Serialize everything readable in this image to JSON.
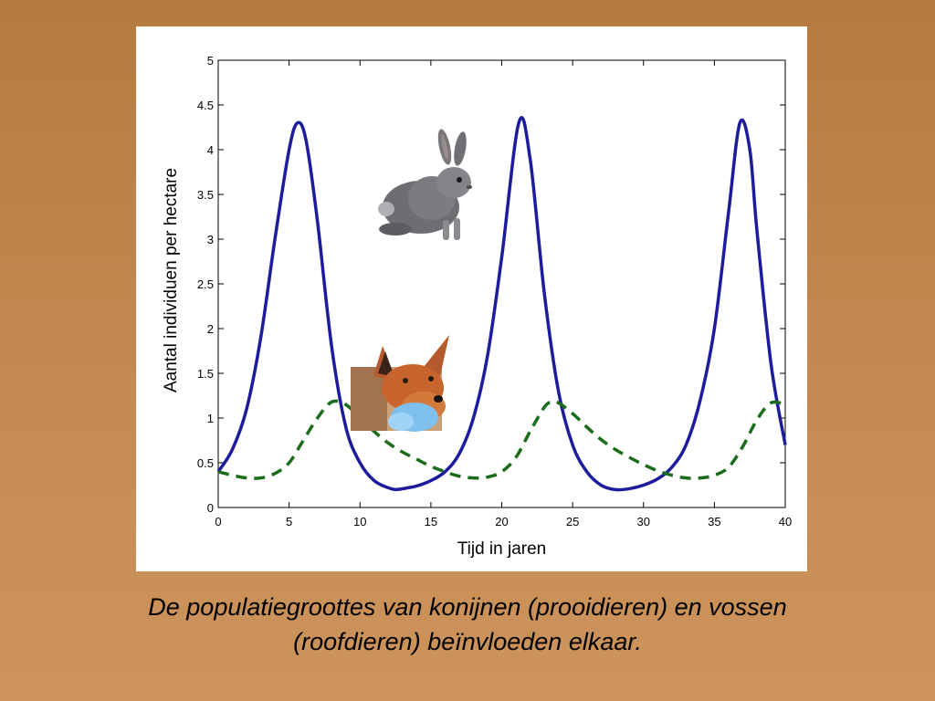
{
  "chart_data": {
    "type": "line",
    "title": "",
    "xlabel": "Tijd in jaren",
    "ylabel": "Aantal individuen per hectare",
    "xlim": [
      0,
      40
    ],
    "ylim": [
      0,
      5
    ],
    "xticks": [
      0,
      5,
      10,
      15,
      20,
      25,
      30,
      35,
      40
    ],
    "yticks": [
      0,
      0.5,
      1,
      1.5,
      2,
      2.5,
      3,
      3.5,
      4,
      4.5,
      5
    ],
    "grid": false,
    "series": [
      {
        "name": "",
        "depicts": "rabbit-icon",
        "color": "#1c1c9c",
        "style": "solid",
        "x": [
          0,
          1,
          2,
          3,
          4,
          5,
          5.6,
          6.2,
          7,
          8,
          9,
          10,
          11,
          12,
          12.5,
          13,
          14,
          15,
          16,
          17,
          18,
          19,
          20,
          21.2,
          22,
          23,
          24,
          25,
          26,
          27,
          28,
          29,
          30,
          31,
          32,
          33,
          34,
          35,
          36,
          36.8,
          37.5,
          38,
          39,
          40
        ],
        "y": [
          0.4,
          0.65,
          1.1,
          1.9,
          3.0,
          4.0,
          4.3,
          4.1,
          3.2,
          1.8,
          0.9,
          0.5,
          0.3,
          0.22,
          0.2,
          0.21,
          0.24,
          0.3,
          0.4,
          0.6,
          1.0,
          1.7,
          2.8,
          4.3,
          3.9,
          2.4,
          1.3,
          0.7,
          0.4,
          0.25,
          0.2,
          0.21,
          0.25,
          0.32,
          0.45,
          0.7,
          1.2,
          2.0,
          3.3,
          4.3,
          4.0,
          3.1,
          1.6,
          0.7
        ]
      },
      {
        "name": "",
        "depicts": "fox-icon",
        "color": "#1a6b1a",
        "style": "dashed",
        "x": [
          0,
          1,
          2,
          3,
          4,
          5,
          6,
          7,
          8,
          9,
          10,
          11,
          12,
          13,
          14,
          15,
          16,
          17,
          18,
          19,
          20,
          21,
          22,
          23,
          23.5,
          24,
          25,
          26,
          27,
          28,
          29,
          30,
          31,
          32,
          33,
          34,
          35,
          36,
          37,
          38,
          39,
          40
        ],
        "y": [
          0.4,
          0.36,
          0.33,
          0.33,
          0.38,
          0.5,
          0.75,
          1.0,
          1.18,
          1.15,
          1.0,
          0.85,
          0.72,
          0.62,
          0.54,
          0.46,
          0.4,
          0.35,
          0.33,
          0.34,
          0.4,
          0.56,
          0.85,
          1.12,
          1.18,
          1.17,
          1.05,
          0.9,
          0.76,
          0.65,
          0.56,
          0.48,
          0.41,
          0.36,
          0.33,
          0.33,
          0.36,
          0.45,
          0.68,
          0.98,
          1.17,
          1.15
        ]
      }
    ]
  },
  "caption": {
    "line1": "De populatiegroottes van konijnen (prooidieren) en vossen",
    "line2": "(roofdieren) beïnvloeden elkaar."
  }
}
